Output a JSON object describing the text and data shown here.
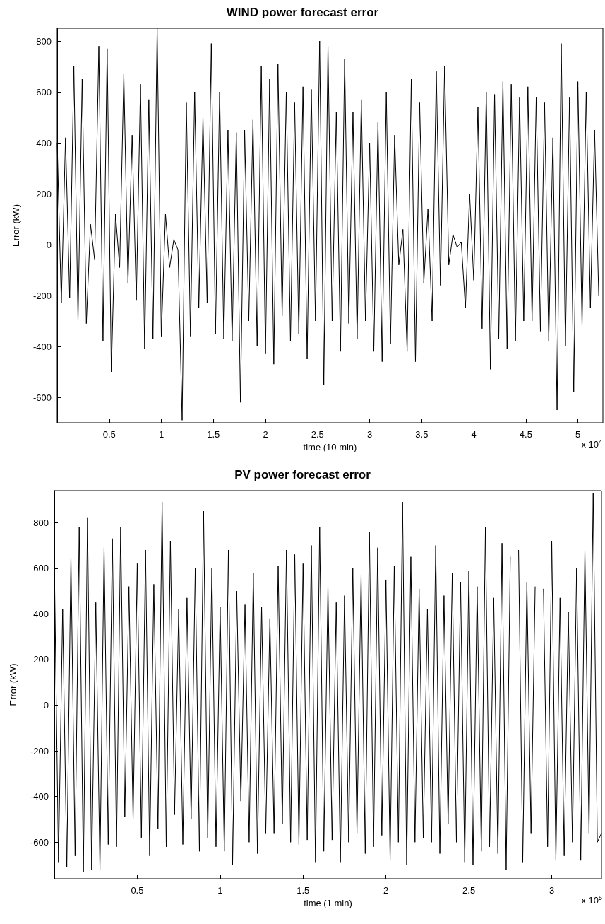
{
  "chart_data": [
    {
      "type": "line",
      "title": "WIND power forecast error",
      "xlabel": "time (10 min)",
      "ylabel": "Error (kW)",
      "color": "#000000",
      "x": [
        0,
        0.04,
        0.08,
        0.12,
        0.16,
        0.2,
        0.24,
        0.28,
        0.32,
        0.36,
        0.4,
        0.44,
        0.48,
        0.52,
        0.56,
        0.6,
        0.64,
        0.68,
        0.72,
        0.76,
        0.8,
        0.84,
        0.88,
        0.92,
        0.96,
        1,
        1.04,
        1.08,
        1.12,
        1.16,
        1.2,
        1.24,
        1.28,
        1.32,
        1.36,
        1.4,
        1.44,
        1.48,
        1.52,
        1.56,
        1.6,
        1.64,
        1.68,
        1.72,
        1.76,
        1.8,
        1.84,
        1.88,
        1.92,
        1.96,
        2,
        2.04,
        2.08,
        2.12,
        2.16,
        2.2,
        2.24,
        2.28,
        2.32,
        2.36,
        2.4,
        2.44,
        2.48,
        2.52,
        2.56,
        2.6,
        2.64,
        2.68,
        2.72,
        2.76,
        2.8,
        2.84,
        2.88,
        2.92,
        2.96,
        3,
        3.04,
        3.08,
        3.12,
        3.16,
        3.2,
        3.24,
        3.28,
        3.32,
        3.36,
        3.4,
        3.44,
        3.48,
        3.52,
        3.56,
        3.6,
        3.64,
        3.68,
        3.72,
        3.76,
        3.8,
        3.84,
        3.88,
        3.92,
        3.96,
        4,
        4.04,
        4.08,
        4.12,
        4.16,
        4.2,
        4.24,
        4.28,
        4.32,
        4.36,
        4.4,
        4.44,
        4.48,
        4.52,
        4.56,
        4.6,
        4.64,
        4.68,
        4.72,
        4.76,
        4.8,
        4.84,
        4.88,
        4.92,
        4.96,
        5,
        5.04,
        5.08,
        5.12,
        5.16,
        5.2
      ],
      "values": [
        400,
        -230,
        420,
        -210,
        700,
        -300,
        650,
        -310,
        80,
        -60,
        780,
        -380,
        770,
        -500,
        120,
        -90,
        670,
        -150,
        430,
        -220,
        630,
        -410,
        570,
        -370,
        850,
        -360,
        120,
        -90,
        20,
        -20,
        -690,
        560,
        -360,
        600,
        -250,
        500,
        -230,
        790,
        -350,
        600,
        -370,
        450,
        -380,
        440,
        -620,
        450,
        -300,
        490,
        -400,
        700,
        -430,
        650,
        -470,
        710,
        -280,
        600,
        -380,
        560,
        -350,
        620,
        -450,
        610,
        -300,
        800,
        -550,
        780,
        -300,
        520,
        -420,
        730,
        -310,
        520,
        -370,
        570,
        -300,
        400,
        -420,
        480,
        -460,
        600,
        -390,
        430,
        -80,
        60,
        -420,
        650,
        -460,
        560,
        -150,
        140,
        -300,
        680,
        -160,
        700,
        -80,
        40,
        -10,
        10,
        -250,
        200,
        -140,
        540,
        -330,
        600,
        -490,
        590,
        -370,
        640,
        -410,
        630,
        -380,
        580,
        -300,
        620,
        -300,
        580,
        -340,
        560,
        -380,
        420,
        -650,
        790,
        -400,
        580,
        -580,
        640,
        -320,
        600,
        -250,
        450,
        -200
      ],
      "xlim": [
        0,
        5.24
      ],
      "xticks": [
        0.5,
        1,
        1.5,
        2,
        2.5,
        3,
        3.5,
        4,
        4.5,
        5
      ],
      "ylim": [
        -700,
        850
      ],
      "yticks": [
        -600,
        -400,
        -200,
        0,
        200,
        400,
        600,
        800
      ],
      "annotations": [
        "x 10$^{4}$"
      ]
    },
    {
      "type": "line",
      "title": "PV power forecast error",
      "xlabel": "time (1 min)",
      "ylabel": "Error (kW)",
      "color": "#000000",
      "x": [
        0,
        0.025,
        0.05,
        0.075,
        0.1,
        0.125,
        0.15,
        0.175,
        0.2,
        0.225,
        0.25,
        0.275,
        0.3,
        0.325,
        0.35,
        0.375,
        0.4,
        0.425,
        0.45,
        0.475,
        0.5,
        0.525,
        0.55,
        0.575,
        0.6,
        0.625,
        0.65,
        0.675,
        0.7,
        0.725,
        0.75,
        0.775,
        0.8,
        0.825,
        0.85,
        0.875,
        0.9,
        0.925,
        0.95,
        0.975,
        1,
        1.025,
        1.05,
        1.075,
        1.1,
        1.125,
        1.15,
        1.175,
        1.2,
        1.225,
        1.25,
        1.275,
        1.3,
        1.325,
        1.35,
        1.375,
        1.4,
        1.425,
        1.45,
        1.475,
        1.5,
        1.525,
        1.55,
        1.575,
        1.6,
        1.625,
        1.65,
        1.675,
        1.7,
        1.725,
        1.75,
        1.775,
        1.8,
        1.825,
        1.85,
        1.875,
        1.9,
        1.925,
        1.95,
        1.975,
        2,
        2.025,
        2.05,
        2.075,
        2.1,
        2.125,
        2.15,
        2.175,
        2.2,
        2.225,
        2.25,
        2.275,
        2.3,
        2.325,
        2.35,
        2.375,
        2.4,
        2.425,
        2.45,
        2.475,
        2.5,
        2.525,
        2.55,
        2.575,
        2.6,
        2.625,
        2.65,
        2.675,
        2.7,
        2.725,
        2.75,
        2.775,
        2.8,
        2.825,
        2.85,
        2.875,
        2.9,
        2.925,
        2.95,
        2.975,
        3,
        3.025,
        3.05,
        3.075,
        3.1,
        3.125,
        3.15,
        3.175,
        3.2,
        3.225,
        3.25,
        3.275,
        3.3
      ],
      "values": [
        620,
        -690,
        420,
        -710,
        650,
        -660,
        780,
        -730,
        820,
        -720,
        450,
        -720,
        690,
        -610,
        730,
        -620,
        780,
        -490,
        520,
        -500,
        620,
        -580,
        680,
        -660,
        530,
        -540,
        890,
        -620,
        720,
        -480,
        420,
        -610,
        470,
        -500,
        600,
        -640,
        850,
        -580,
        600,
        -620,
        430,
        -640,
        680,
        -700,
        500,
        -420,
        440,
        -600,
        580,
        -650,
        430,
        -560,
        380,
        -560,
        610,
        -520,
        680,
        -600,
        660,
        -610,
        620,
        -590,
        700,
        -690,
        780,
        -640,
        520,
        -590,
        450,
        -690,
        480,
        -600,
        600,
        -560,
        570,
        -650,
        760,
        -620,
        690,
        -570,
        550,
        -680,
        610,
        -600,
        890,
        -700,
        650,
        -600,
        510,
        -580,
        420,
        -600,
        700,
        -650,
        480,
        -520,
        580,
        -600,
        540,
        -690,
        590,
        -700,
        520,
        -640,
        780,
        -620,
        470,
        -650,
        710,
        -720,
        650,
        null,
        680,
        -690,
        540,
        -560,
        520,
        null,
        510,
        -620,
        720,
        -680,
        470,
        -660,
        410,
        -600,
        600,
        -680,
        680,
        -560,
        930,
        -600,
        -560
      ],
      "xlim": [
        0,
        3.3
      ],
      "xticks": [
        0.5,
        1,
        1.5,
        2,
        2.5,
        3
      ],
      "ylim": [
        -760,
        940
      ],
      "yticks": [
        -600,
        -400,
        -200,
        0,
        200,
        400,
        600,
        800
      ],
      "annotations": [
        "x 10$^{5}$"
      ]
    }
  ]
}
